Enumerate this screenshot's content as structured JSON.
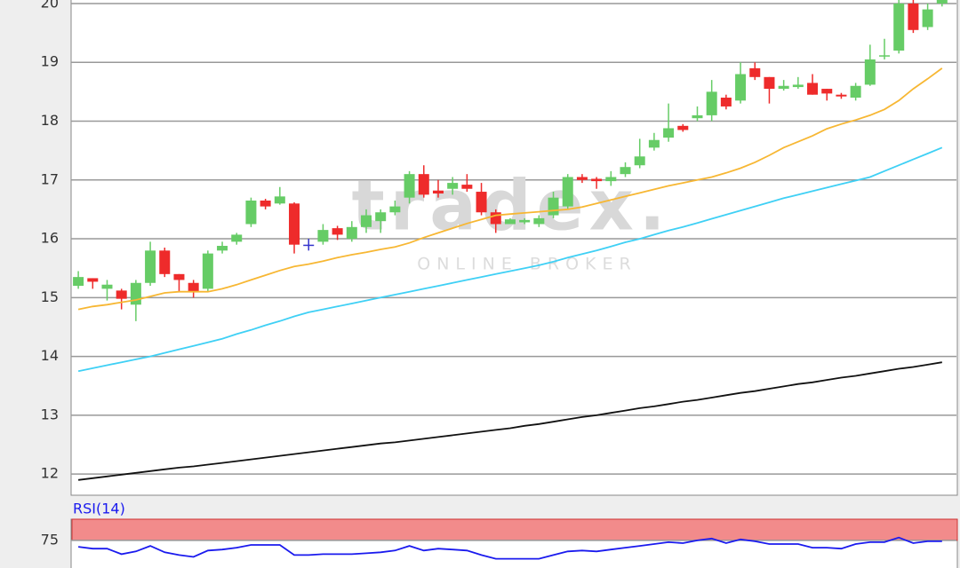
{
  "chart_data": [
    {
      "type": "candlestick",
      "watermark": {
        "brand": "tradex.",
        "tagline": "ONLINE BROKER"
      },
      "categories": [
        null,
        null,
        null,
        null,
        null,
        null,
        null,
        null,
        null,
        null,
        null,
        null,
        null,
        null,
        null,
        null,
        null,
        null,
        null,
        null,
        null,
        null,
        null,
        null,
        null,
        null,
        null,
        null,
        null,
        null,
        null,
        null,
        null,
        null,
        null,
        null,
        null,
        null,
        null,
        null,
        null,
        null,
        null,
        null,
        null,
        null,
        null,
        null,
        null,
        null,
        null,
        null,
        null,
        null,
        null,
        null,
        null,
        null,
        null,
        null,
        null
      ],
      "open": [
        15.2,
        15.33,
        15.15,
        15.12,
        14.88,
        15.25,
        15.8,
        15.4,
        15.25,
        15.15,
        15.8,
        15.95,
        16.25,
        16.65,
        16.6,
        16.6,
        15.9,
        15.95,
        16.18,
        16.0,
        16.2,
        16.3,
        16.45,
        16.7,
        17.1,
        16.82,
        16.85,
        16.92,
        16.8,
        16.45,
        16.25,
        16.28,
        16.25,
        16.4,
        16.55,
        17.05,
        17.02,
        16.98,
        17.1,
        17.25,
        17.55,
        17.72,
        17.92,
        18.05,
        18.1,
        18.4,
        18.35,
        18.9,
        18.75,
        18.55,
        18.58,
        18.65,
        18.55,
        18.45,
        18.4,
        18.62,
        19.1,
        19.2,
        20.0,
        19.6,
        20.0
      ],
      "high": [
        15.45,
        15.33,
        15.3,
        15.15,
        15.3,
        15.95,
        15.85,
        15.4,
        15.3,
        15.8,
        15.95,
        16.1,
        16.7,
        16.68,
        16.88,
        16.62,
        16.0,
        16.25,
        16.22,
        16.3,
        16.5,
        16.5,
        16.65,
        17.15,
        17.25,
        17.0,
        17.05,
        17.1,
        16.95,
        16.5,
        16.35,
        16.35,
        16.4,
        16.8,
        17.1,
        17.1,
        17.05,
        17.15,
        17.3,
        17.7,
        17.8,
        18.3,
        17.95,
        18.25,
        18.7,
        18.45,
        19.0,
        19.0,
        18.75,
        18.7,
        18.75,
        18.8,
        18.55,
        18.48,
        18.65,
        19.3,
        19.4,
        20.06,
        20.06,
        20.0,
        20.06
      ],
      "low": [
        15.15,
        15.15,
        14.95,
        14.8,
        14.6,
        15.2,
        15.35,
        15.1,
        15.0,
        15.1,
        15.75,
        15.9,
        16.2,
        16.5,
        16.58,
        15.75,
        15.8,
        15.9,
        15.98,
        15.95,
        16.1,
        16.1,
        16.4,
        16.6,
        16.7,
        16.7,
        16.75,
        16.8,
        16.4,
        16.1,
        16.25,
        16.25,
        16.2,
        16.35,
        16.5,
        16.95,
        16.85,
        16.9,
        17.05,
        17.2,
        17.5,
        17.65,
        17.82,
        18.0,
        18.0,
        18.2,
        18.3,
        18.7,
        18.3,
        18.52,
        18.55,
        18.45,
        18.35,
        18.38,
        18.35,
        18.6,
        19.05,
        19.15,
        19.5,
        19.55,
        19.95
      ],
      "close": [
        15.35,
        15.27,
        15.22,
        14.98,
        15.25,
        15.8,
        15.4,
        15.3,
        15.1,
        15.75,
        15.88,
        16.07,
        16.65,
        16.55,
        16.72,
        15.9,
        15.9,
        16.15,
        16.07,
        16.2,
        16.4,
        16.45,
        16.55,
        17.1,
        16.75,
        16.77,
        16.95,
        16.85,
        16.45,
        16.25,
        16.33,
        16.32,
        16.35,
        16.7,
        17.05,
        17.0,
        16.98,
        17.05,
        17.22,
        17.4,
        17.68,
        17.88,
        17.85,
        18.1,
        18.5,
        18.25,
        18.8,
        18.75,
        18.55,
        18.6,
        18.62,
        18.45,
        18.47,
        18.42,
        18.6,
        19.05,
        19.12,
        20.0,
        19.55,
        19.9,
        20.06
      ],
      "up_color": "#66cc66",
      "down_color": "#ee2b2b",
      "flat_color": "#3333cc",
      "series": [
        {
          "color": "#f7b733",
          "values": [
            14.8,
            14.85,
            14.88,
            14.92,
            14.96,
            15.02,
            15.08,
            15.1,
            15.1,
            15.1,
            15.15,
            15.22,
            15.3,
            15.38,
            15.46,
            15.53,
            15.57,
            15.62,
            15.68,
            15.73,
            15.77,
            15.82,
            15.86,
            15.93,
            16.02,
            16.1,
            16.18,
            16.26,
            16.33,
            16.4,
            16.42,
            16.44,
            16.46,
            16.48,
            16.5,
            16.54,
            16.6,
            16.66,
            16.72,
            16.78,
            16.84,
            16.9,
            16.95,
            17.0,
            17.05,
            17.12,
            17.2,
            17.3,
            17.42,
            17.55,
            17.65,
            17.75,
            17.87,
            17.95,
            18.02,
            18.1,
            18.2,
            18.35,
            18.55,
            18.72,
            18.9
          ]
        },
        {
          "color": "#3fd0f5",
          "values": [
            13.75,
            13.8,
            13.85,
            13.9,
            13.95,
            14.0,
            14.06,
            14.12,
            14.18,
            14.24,
            14.3,
            14.38,
            14.45,
            14.53,
            14.6,
            14.68,
            14.75,
            14.8,
            14.85,
            14.9,
            14.95,
            15.0,
            15.05,
            15.1,
            15.15,
            15.2,
            15.25,
            15.3,
            15.35,
            15.4,
            15.45,
            15.5,
            15.55,
            15.61,
            15.68,
            15.74,
            15.8,
            15.87,
            15.94,
            16.0,
            16.07,
            16.14,
            16.2,
            16.27,
            16.34,
            16.41,
            16.48,
            16.55,
            16.62,
            16.69,
            16.75,
            16.81,
            16.87,
            16.93,
            16.99,
            17.05,
            17.15,
            17.25,
            17.35,
            17.45,
            17.55
          ]
        },
        {
          "color": "#111111",
          "values": [
            11.9,
            11.93,
            11.96,
            11.99,
            12.02,
            12.05,
            12.08,
            12.11,
            12.13,
            12.16,
            12.19,
            12.22,
            12.25,
            12.28,
            12.31,
            12.34,
            12.37,
            12.4,
            12.43,
            12.46,
            12.49,
            12.52,
            12.54,
            12.57,
            12.6,
            12.63,
            12.66,
            12.69,
            12.72,
            12.75,
            12.78,
            12.82,
            12.85,
            12.89,
            12.93,
            12.97,
            13.0,
            13.04,
            13.08,
            13.12,
            13.15,
            13.19,
            13.23,
            13.26,
            13.3,
            13.34,
            13.38,
            13.41,
            13.45,
            13.49,
            13.53,
            13.56,
            13.6,
            13.64,
            13.67,
            13.71,
            13.75,
            13.79,
            13.82,
            13.86,
            13.9
          ]
        }
      ],
      "ylim": [
        11.64,
        20.06
      ],
      "yticks": [
        12,
        13,
        14,
        15,
        16,
        17,
        18,
        19,
        20
      ],
      "grid": true
    },
    {
      "type": "line",
      "title": "RSI(14)",
      "series": [
        {
          "color": "#1a1aee",
          "values": [
            67.4,
            65.2,
            65.2,
            58.7,
            62,
            68.5,
            60.9,
            57.6,
            55.4,
            63,
            64.1,
            66.3,
            69.6,
            69.6,
            69.6,
            57.6,
            57.6,
            58.7,
            58.7,
            58.7,
            59.8,
            60.9,
            63,
            68.5,
            63,
            65.2,
            64.1,
            63,
            57.6,
            53.3,
            53.3,
            53.3,
            53.3,
            57.6,
            62,
            63,
            62,
            64.1,
            66.3,
            68.5,
            70.7,
            72.8,
            71.7,
            75,
            77.2,
            71.7,
            76.1,
            73.9,
            70.7,
            70.7,
            70.7,
            66.3,
            66.3,
            65.2,
            70.7,
            72.8,
            72.8,
            78.3,
            71.7,
            73.9,
            73.9
          ]
        }
      ],
      "band": {
        "range": [
          75,
          100
        ],
        "color": "#f28b8b"
      },
      "ylim": [
        41.3,
        100
      ],
      "yticks": [
        75
      ],
      "grid": true
    }
  ]
}
